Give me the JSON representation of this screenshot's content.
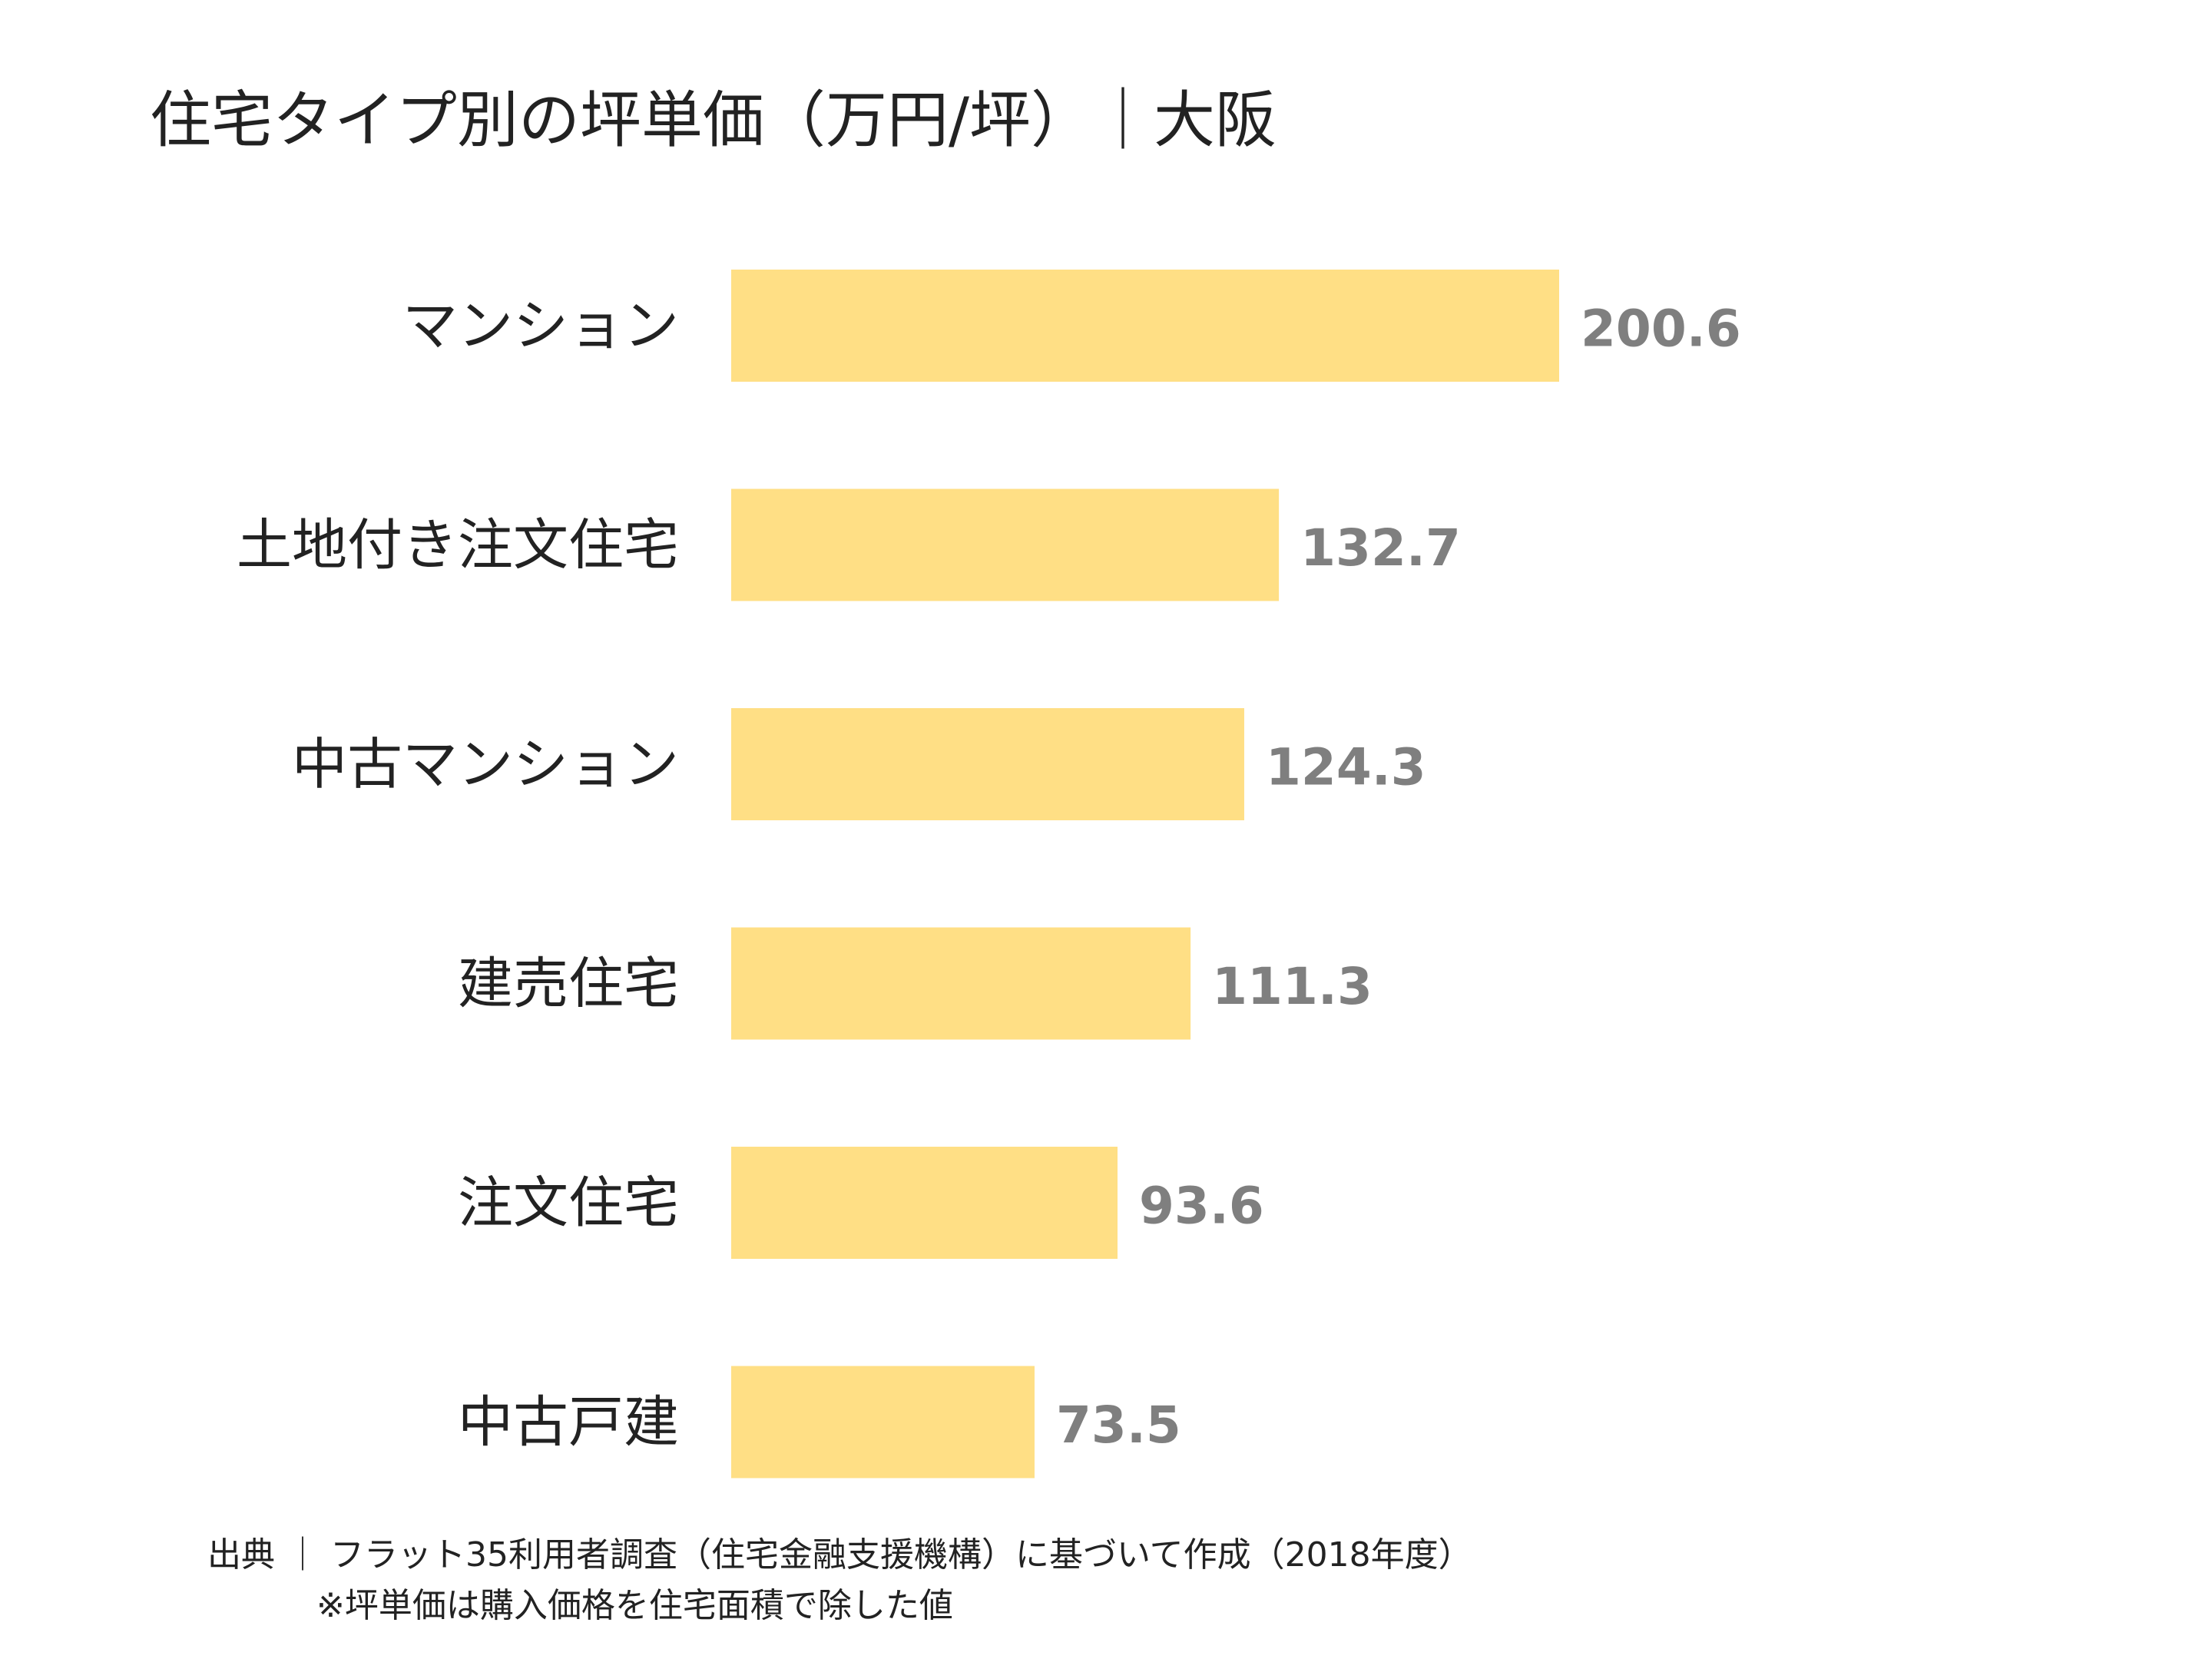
{
  "chart_data": {
    "type": "bar",
    "orientation": "horizontal",
    "title": "住宅タイプ別の坪単価（万円/坪）｜大阪",
    "categories": [
      "マンション",
      "土地付き注文住宅",
      "中古マンション",
      "建売住宅",
      "注文住宅",
      "中古戸建"
    ],
    "values": [
      200.6,
      132.7,
      124.3,
      111.3,
      93.6,
      73.5
    ],
    "value_labels": [
      "200.6",
      "132.7",
      "124.3",
      "111.3",
      "93.6",
      "73.5"
    ],
    "xlim": [
      0,
      200.6
    ],
    "xlabel": "",
    "ylabel": "",
    "grid": false,
    "bar_color": "#FFDF85",
    "label_color": "#7F7F7F"
  },
  "footer": {
    "source": "出典 ｜ フラット35利用者調査（住宅金融支援機構）に基づいて作成（2018年度）",
    "note": "※坪単価は購入価格を住宅面積で除した値"
  }
}
